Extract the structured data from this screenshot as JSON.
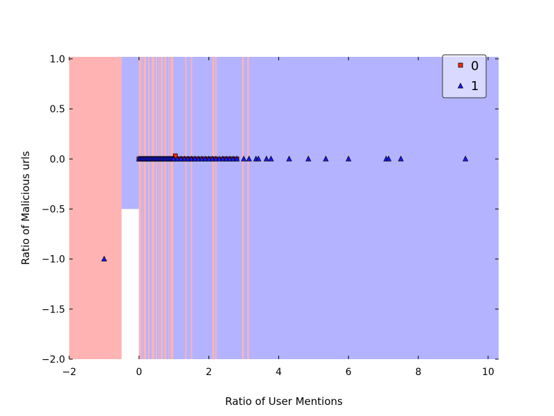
{
  "chart_data": {
    "type": "scatter",
    "xlabel": "Ratio of User Mentions",
    "ylabel": "Ratio of Malicious urls",
    "xlim": [
      -2,
      10.3
    ],
    "ylim": [
      -2.0,
      1.02
    ],
    "x_ticks": [
      -2,
      0,
      2,
      4,
      6,
      8,
      10
    ],
    "y_ticks": [
      1.0,
      0.5,
      0.0,
      -0.5,
      -1.0,
      -1.5,
      -2.0
    ],
    "x_tick_labels": [
      "−2",
      "0",
      "2",
      "4",
      "6",
      "8",
      "10"
    ],
    "y_tick_labels": [
      "1.0",
      "0.5",
      "0.0",
      "−0.5",
      "−1.0",
      "−1.5",
      "−2.0"
    ],
    "grid": false,
    "legend_position": "top-right",
    "colors": {
      "class0_region": "#ffb3b3",
      "class1_region": "#b3b3ff",
      "class0_marker": "#ff2a00",
      "class1_marker": "#1a1aff",
      "marker_edge": "#000000"
    },
    "decision_regions": [
      {
        "class": "0",
        "x": [
          -2.0,
          -0.5
        ],
        "y": [
          -2.0,
          1.02
        ]
      },
      {
        "class": "1",
        "x": [
          -0.5,
          0.0
        ],
        "y": [
          -0.5,
          1.02
        ]
      },
      {
        "class": "1",
        "x": [
          0.0,
          10.3
        ],
        "y": [
          -2.0,
          1.02
        ]
      },
      {
        "class": "0",
        "x": [
          0.0,
          0.06
        ],
        "y": [
          -2.0,
          1.02
        ]
      },
      {
        "class": "0",
        "x": [
          0.08,
          0.1
        ],
        "y": [
          -2.0,
          1.02
        ]
      },
      {
        "class": "0",
        "x": [
          0.13,
          0.2
        ],
        "y": [
          -2.0,
          1.02
        ]
      },
      {
        "class": "0",
        "x": [
          0.26,
          0.3
        ],
        "y": [
          -2.0,
          1.02
        ]
      },
      {
        "class": "0",
        "x": [
          0.36,
          0.44
        ],
        "y": [
          -2.0,
          1.02
        ]
      },
      {
        "class": "0",
        "x": [
          0.48,
          0.52
        ],
        "y": [
          -2.0,
          1.02
        ]
      },
      {
        "class": "0",
        "x": [
          0.56,
          0.58
        ],
        "y": [
          -2.0,
          1.02
        ]
      },
      {
        "class": "0",
        "x": [
          0.62,
          0.68
        ],
        "y": [
          -2.0,
          1.02
        ]
      },
      {
        "class": "0",
        "x": [
          0.72,
          0.78
        ],
        "y": [
          -2.0,
          1.02
        ]
      },
      {
        "class": "0",
        "x": [
          0.84,
          0.86
        ],
        "y": [
          -2.0,
          1.02
        ]
      },
      {
        "class": "0",
        "x": [
          0.9,
          0.98
        ],
        "y": [
          -2.0,
          1.02
        ]
      },
      {
        "class": "0",
        "x": [
          1.32,
          1.36
        ],
        "y": [
          -2.0,
          1.02
        ]
      },
      {
        "class": "0",
        "x": [
          1.48,
          1.52
        ],
        "y": [
          -2.0,
          1.02
        ]
      },
      {
        "class": "0",
        "x": [
          2.1,
          2.15
        ],
        "y": [
          -2.0,
          1.02
        ]
      },
      {
        "class": "0",
        "x": [
          2.18,
          2.22
        ],
        "y": [
          -2.0,
          1.02
        ]
      },
      {
        "class": "0",
        "x": [
          2.95,
          3.0
        ],
        "y": [
          -2.0,
          1.02
        ]
      },
      {
        "class": "0",
        "x": [
          3.1,
          3.15
        ],
        "y": [
          -2.0,
          1.02
        ]
      }
    ],
    "series": [
      {
        "name": "0",
        "marker": "square",
        "x": [
          0.0,
          0.05,
          0.1,
          0.15,
          0.2,
          0.25,
          0.3,
          0.35,
          0.4,
          0.45,
          0.5,
          0.55,
          0.6,
          0.65,
          0.7,
          0.75,
          0.8,
          0.85,
          0.9,
          0.95,
          1.0,
          1.05,
          1.1,
          1.15,
          1.2,
          1.25,
          1.3,
          1.35,
          1.4,
          1.45,
          1.5,
          1.55,
          1.6,
          1.7,
          1.8,
          1.9,
          2.0,
          2.1,
          2.2,
          2.4,
          2.5,
          2.6,
          2.7,
          2.8,
          1.04
        ],
        "y": [
          0.0,
          0.0,
          0.0,
          0.0,
          0.0,
          0.0,
          0.0,
          0.0,
          0.0,
          0.0,
          0.0,
          0.0,
          0.0,
          0.0,
          0.0,
          0.0,
          0.0,
          0.0,
          0.0,
          0.0,
          0.0,
          0.0,
          0.0,
          0.0,
          0.0,
          0.0,
          0.0,
          0.0,
          0.0,
          0.0,
          0.0,
          0.0,
          0.0,
          0.0,
          0.0,
          0.0,
          0.0,
          0.0,
          0.0,
          0.0,
          0.0,
          0.0,
          0.0,
          0.0,
          0.03
        ]
      },
      {
        "name": "1",
        "marker": "triangle",
        "x": [
          -1.0,
          0.0,
          0.04,
          0.08,
          0.12,
          0.16,
          0.2,
          0.24,
          0.28,
          0.32,
          0.36,
          0.4,
          0.44,
          0.48,
          0.52,
          0.56,
          0.6,
          0.64,
          0.68,
          0.72,
          0.76,
          0.8,
          0.84,
          0.88,
          0.92,
          0.96,
          1.0,
          1.1,
          1.2,
          1.3,
          1.4,
          1.5,
          1.6,
          1.7,
          1.8,
          1.9,
          2.0,
          2.1,
          2.2,
          2.3,
          2.4,
          2.5,
          2.6,
          2.7,
          2.8,
          3.0,
          3.15,
          3.35,
          3.42,
          3.65,
          3.78,
          4.3,
          4.85,
          5.35,
          6.0,
          7.08,
          7.15,
          7.5,
          9.35
        ],
        "y": [
          -1.0,
          0.0,
          0.0,
          0.0,
          0.0,
          0.0,
          0.0,
          0.0,
          0.0,
          0.0,
          0.0,
          0.0,
          0.0,
          0.0,
          0.0,
          0.0,
          0.0,
          0.0,
          0.0,
          0.0,
          0.0,
          0.0,
          0.0,
          0.0,
          0.0,
          0.0,
          0.0,
          0.0,
          0.0,
          0.0,
          0.0,
          0.0,
          0.0,
          0.0,
          0.0,
          0.0,
          0.0,
          0.0,
          0.0,
          0.0,
          0.0,
          0.0,
          0.0,
          0.0,
          0.0,
          0.0,
          0.0,
          0.0,
          0.0,
          0.0,
          0.0,
          0.0,
          0.0,
          0.0,
          0.0,
          0.0,
          0.0,
          0.0,
          0.0
        ]
      }
    ]
  }
}
